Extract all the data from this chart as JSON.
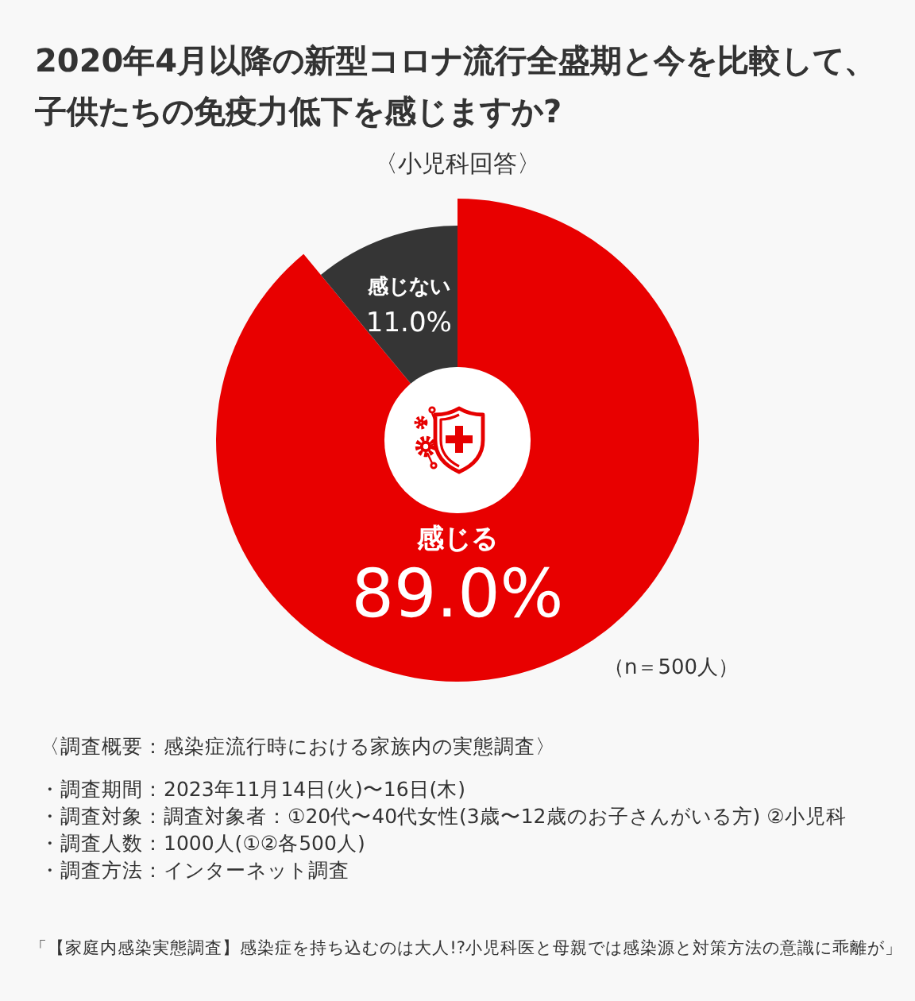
{
  "chart_data": {
    "type": "donut",
    "title": "2020年4月以降の新型コロナ流行全盛期と今を比較して、子供たちの免疫力低下を感じますか?",
    "subtitle": "〈小児科回答〉",
    "categories": [
      "感じる",
      "感じない"
    ],
    "values": [
      89.0,
      11.0
    ],
    "colors": [
      "#e80000",
      "#353535"
    ],
    "value_labels": [
      "89.0%",
      "11.0%"
    ],
    "annotations": [
      "（n＝500人）",
      "〈調査概要：感染症流行時における家族内の実態調査〉",
      "・調査期間：2023年11月14日(火)〜16日(木)",
      "・調査対象：調査対象者：①20代〜40代女性(3歳〜12歳のお子さんがいる方) ②小児科",
      "・調査人数：1000人(①②各500人)",
      "・調査方法：インターネット調査",
      "「【家庭内感染実態調査】感染症を持ち込むのは大人!?小児科医と母親では感染源と対策方法の意識に乖離が」"
    ]
  }
}
